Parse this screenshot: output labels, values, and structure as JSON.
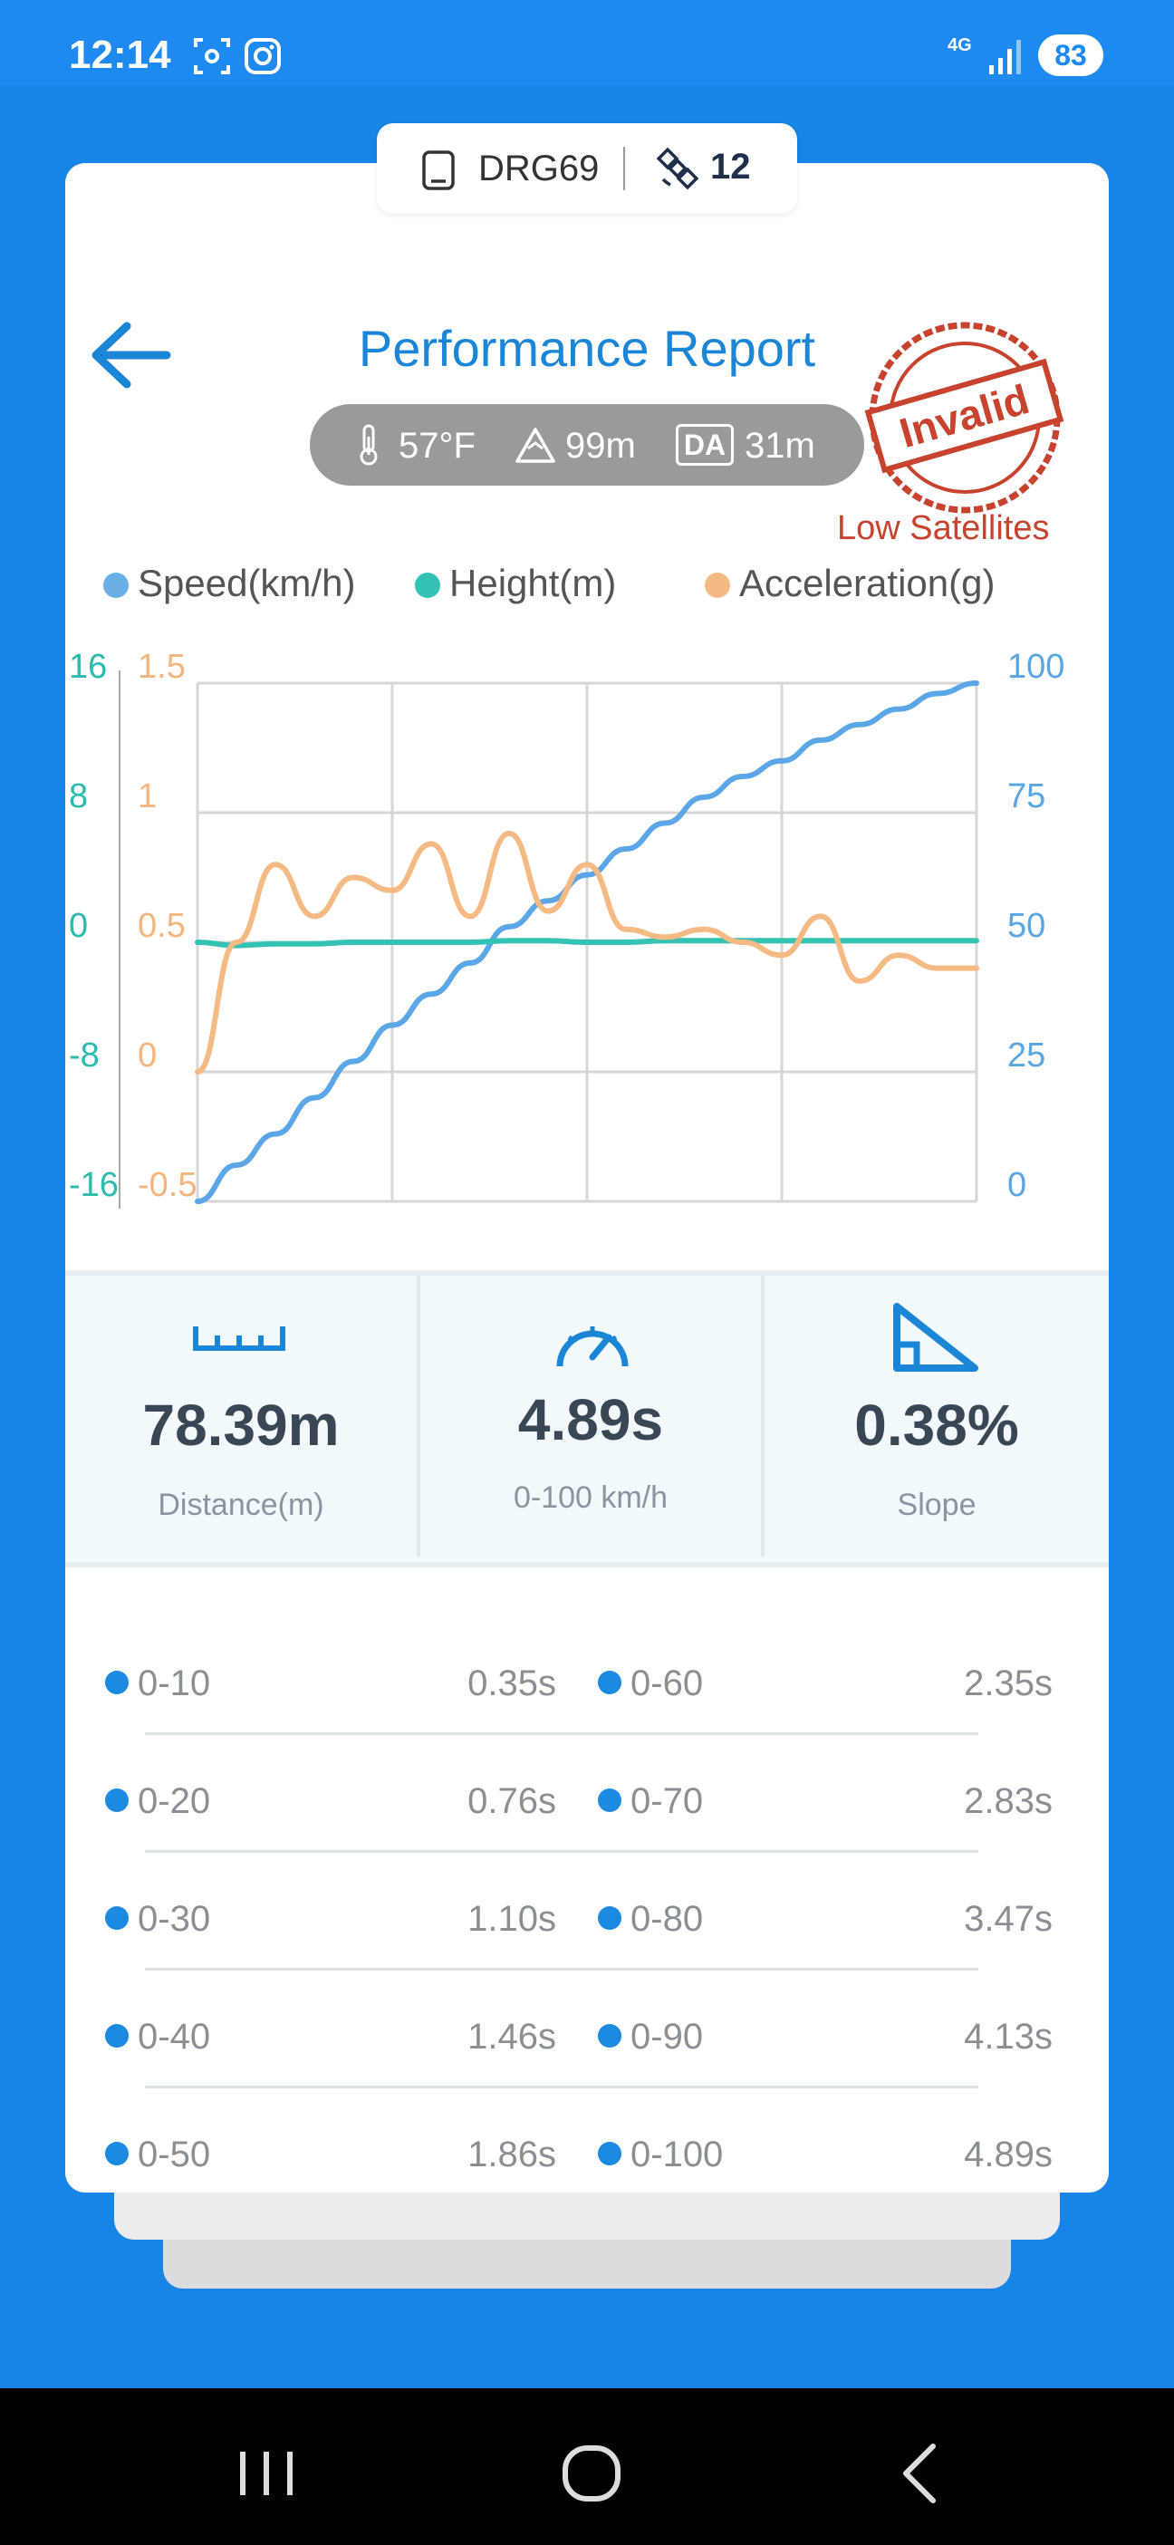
{
  "status_bar": {
    "time": "12:14",
    "network": "4G",
    "battery": "83"
  },
  "device": {
    "name": "DRG69",
    "satellites": "12"
  },
  "header": {
    "title": "Performance Report"
  },
  "conditions": {
    "temperature": "57°F",
    "altitude": "99m",
    "da_badge": "DA",
    "density_altitude": "31m"
  },
  "stamp": {
    "text": "Invalid",
    "caption": "Low Satellites"
  },
  "legend": [
    {
      "label": "Speed(km/h)",
      "color": "#6aaee6"
    },
    {
      "label": "Height(m)",
      "color": "#33c2b4"
    },
    {
      "label": "Acceleration(g)",
      "color": "#f5b984"
    }
  ],
  "chart_data": {
    "type": "line",
    "x": [
      0,
      0.25,
      0.5,
      0.75,
      1.0,
      1.25,
      1.5,
      1.75,
      2.0,
      2.25,
      2.5,
      2.75,
      3.0,
      3.25,
      3.5,
      3.75,
      4.0,
      4.25,
      4.5,
      4.75,
      5.0
    ],
    "series": [
      {
        "name": "Speed(km/h)",
        "axis": "right",
        "color": "#5ba6e6",
        "values": [
          0,
          7,
          13,
          20,
          27,
          34,
          40,
          46,
          53,
          58,
          63,
          68,
          73,
          78,
          82,
          85,
          89,
          92,
          95,
          98,
          100
        ]
      },
      {
        "name": "Height(m)",
        "axis": "left-outer",
        "color": "#33c2b4",
        "values": [
          0,
          -0.2,
          -0.1,
          -0.1,
          0,
          0,
          0,
          0,
          0.1,
          0.1,
          0,
          0,
          0.1,
          0.1,
          0.1,
          0.1,
          0.1,
          0.1,
          0.1,
          0.1,
          0.1
        ]
      },
      {
        "name": "Acceleration(g)",
        "axis": "left-inner",
        "color": "#f5b984",
        "values": [
          0,
          0.5,
          0.8,
          0.6,
          0.75,
          0.7,
          0.88,
          0.6,
          0.92,
          0.62,
          0.8,
          0.55,
          0.52,
          0.55,
          0.5,
          0.45,
          0.6,
          0.35,
          0.45,
          0.4,
          0.4
        ]
      }
    ],
    "axes": {
      "left_outer": {
        "ticks": [
          "16",
          "8",
          "0",
          "-8",
          "-16"
        ],
        "range": [
          -16,
          16
        ],
        "color": "#2bbcae"
      },
      "left_inner": {
        "ticks": [
          "1.5",
          "1",
          "0.5",
          "0",
          "-0.5"
        ],
        "range": [
          -0.5,
          1.5
        ],
        "color": "#f4b57e"
      },
      "right": {
        "ticks": [
          "100",
          "75",
          "50",
          "25",
          "0"
        ],
        "range": [
          0,
          100
        ],
        "color": "#5aa6e3"
      }
    },
    "grid": true
  },
  "stats": [
    {
      "value": "78.39m",
      "label": "Distance(m)",
      "icon": "ruler-icon"
    },
    {
      "value": "4.89s",
      "label": "0-100 km/h",
      "icon": "speedometer-icon"
    },
    {
      "value": "0.38%",
      "label": "Slope",
      "icon": "slope-icon"
    }
  ],
  "splits": [
    {
      "left_label": "0-10",
      "left_time": "0.35s",
      "right_label": "0-60",
      "right_time": "2.35s"
    },
    {
      "left_label": "0-20",
      "left_time": "0.76s",
      "right_label": "0-70",
      "right_time": "2.83s"
    },
    {
      "left_label": "0-30",
      "left_time": "1.10s",
      "right_label": "0-80",
      "right_time": "3.47s"
    },
    {
      "left_label": "0-40",
      "left_time": "1.46s",
      "right_label": "0-90",
      "right_time": "4.13s"
    },
    {
      "left_label": "0-50",
      "left_time": "1.86s",
      "right_label": "0-100",
      "right_time": "4.89s"
    }
  ]
}
